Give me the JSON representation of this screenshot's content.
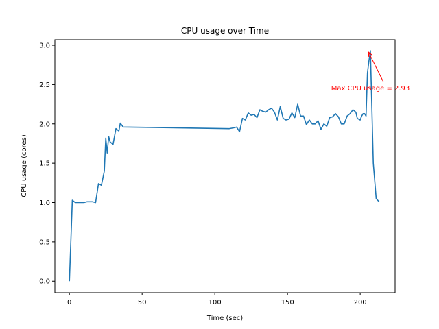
{
  "chart_data": {
    "type": "line",
    "title": "CPU usage over Time",
    "xlabel": "Time (sec)",
    "ylabel": "CPU usage (cores)",
    "xlim": [
      -10,
      224
    ],
    "ylim": [
      -0.146,
      3.07
    ],
    "xticks": [
      0,
      50,
      100,
      150,
      200
    ],
    "yticks": [
      0.0,
      0.5,
      1.0,
      1.5,
      2.0,
      2.5,
      3.0
    ],
    "xtick_labels": [
      "0",
      "50",
      "100",
      "150",
      "200"
    ],
    "ytick_labels": [
      "0.0",
      "0.5",
      "1.0",
      "1.5",
      "2.0",
      "2.5",
      "3.0"
    ],
    "grid": false,
    "line_color": "#1f77b4",
    "annotation": {
      "text": "Max CPU usage = 2.93",
      "color": "#ff0000",
      "point": [
        205,
        2.93
      ],
      "text_anchor_point": [
        180,
        2.45
      ]
    },
    "series": [
      {
        "x": [
          0,
          2,
          4,
          6,
          8,
          10,
          12,
          14,
          16,
          18,
          20,
          22,
          24,
          25,
          26,
          27,
          28,
          30,
          32,
          34,
          35,
          37,
          110,
          113,
          115,
          117,
          119,
          121,
          123,
          125,
          127,
          129,
          131,
          133,
          135,
          137,
          139,
          141,
          143,
          145,
          147,
          149,
          151,
          153,
          155,
          157,
          159,
          161,
          163,
          165,
          167,
          169,
          171,
          173,
          175,
          177,
          179,
          181,
          183,
          185,
          187,
          189,
          191,
          193,
          195,
          197,
          198,
          200,
          201,
          202,
          203,
          204,
          205,
          206,
          207,
          209,
          211,
          212,
          213
        ],
        "y": [
          0.0,
          1.03,
          1.0,
          1.0,
          1.0,
          1.0,
          1.01,
          1.01,
          1.01,
          1.0,
          1.24,
          1.22,
          1.4,
          1.82,
          1.63,
          1.84,
          1.77,
          1.74,
          1.94,
          1.91,
          2.01,
          1.96,
          1.94,
          1.95,
          1.96,
          1.9,
          2.07,
          2.05,
          2.14,
          2.11,
          2.12,
          2.08,
          2.18,
          2.16,
          2.15,
          2.18,
          2.2,
          2.15,
          2.05,
          2.22,
          2.07,
          2.05,
          2.06,
          2.14,
          2.08,
          2.25,
          2.1,
          2.1,
          1.99,
          2.05,
          2.0,
          2.0,
          2.04,
          1.93,
          2.0,
          1.97,
          2.08,
          2.09,
          2.13,
          2.09,
          2.0,
          2.0,
          2.1,
          2.13,
          2.18,
          2.15,
          2.07,
          2.05,
          2.1,
          2.13,
          2.13,
          2.1,
          2.65,
          2.8,
          2.93,
          1.5,
          1.05,
          1.03,
          1.01
        ]
      }
    ]
  }
}
